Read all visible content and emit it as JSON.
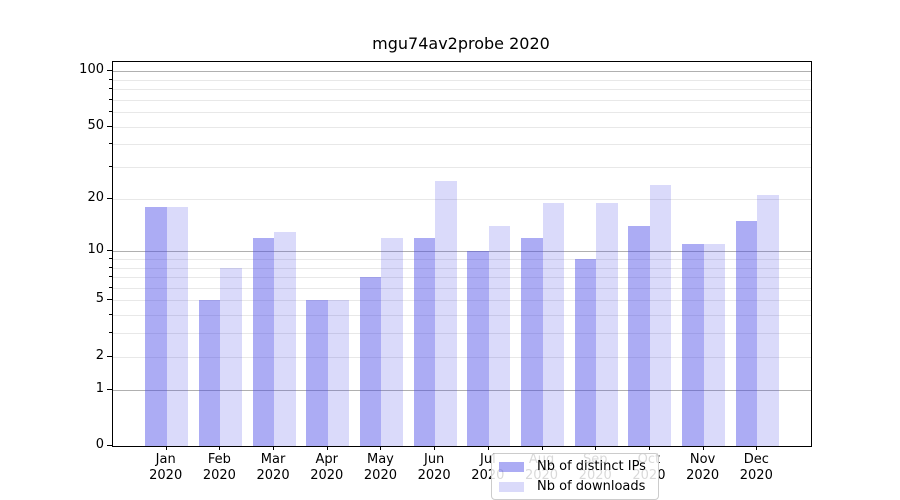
{
  "chart_data": {
    "type": "bar",
    "title": "mgu74av2probe 2020",
    "categories": [
      "Jan",
      "Feb",
      "Mar",
      "Apr",
      "May",
      "Jun",
      "Jul",
      "Aug",
      "Sep",
      "Oct",
      "Nov",
      "Dec"
    ],
    "x_tick_second_line": "2020",
    "series": [
      {
        "name": "Nb of distinct IPs",
        "color": "rgba(70,70,230,0.45)",
        "values": [
          18,
          5,
          12,
          5,
          7,
          12,
          10,
          12,
          9,
          14,
          11,
          15
        ]
      },
      {
        "name": "Nb of downloads",
        "color": "rgba(70,70,230,0.20)",
        "values": [
          18,
          8,
          13,
          5,
          12,
          25,
          14,
          19,
          19,
          24,
          11,
          21
        ]
      }
    ],
    "xlabel": "",
    "ylabel": "",
    "yscale": "log1p",
    "ylim": [
      0,
      112
    ],
    "yticks": [
      100,
      50,
      20,
      10,
      5,
      2,
      1,
      0
    ],
    "yticks_major_grid": [
      1,
      10,
      100
    ],
    "yticks_minor_grid": [
      2,
      3,
      4,
      5,
      6,
      7,
      8,
      9,
      20,
      30,
      40,
      50,
      60,
      70,
      80,
      90
    ],
    "grid": true,
    "legend_position": "lower center",
    "colors": {
      "bars_distinct_ips": "rgba(70,70,230,0.45)",
      "bars_downloads": "rgba(70,70,230,0.20)",
      "grid_major": "#b0b0b0",
      "grid_minor": "#e8e8e8",
      "spine": "#000000",
      "background": "#ffffff"
    },
    "bar_width_fraction": 0.4
  }
}
